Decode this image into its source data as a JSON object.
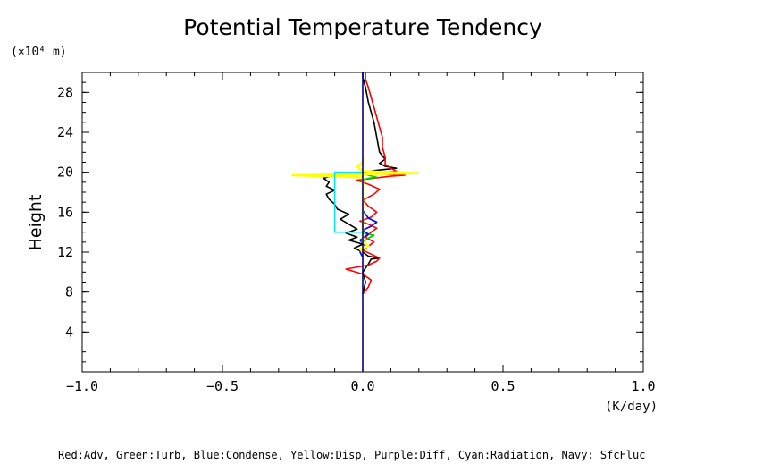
{
  "chart_data": {
    "type": "line",
    "title": "Potential Temperature Tendency",
    "xlabel": "(K/day)",
    "ylabel": "Height",
    "y_unit_label": "(×10⁴ m)",
    "xlim": [
      -1.0,
      1.0
    ],
    "ylim": [
      0,
      30
    ],
    "x_ticks": [
      -1.0,
      -0.5,
      0.0,
      0.5,
      1.0
    ],
    "x_tick_labels": [
      "−1.0",
      "−0.5",
      "0.0",
      "0.5",
      "1.0"
    ],
    "y_ticks": [
      4,
      8,
      12,
      16,
      20,
      24,
      28
    ],
    "y_tick_labels": [
      "4",
      "8",
      "12",
      "16",
      "20",
      "24",
      "28"
    ],
    "grid": false,
    "legend_text": "Red:Adv, Green:Turb, Blue:Condense, Yellow:Disp, Purple:Diff, Cyan:Radiation, Navy: SfcFluc",
    "series": [
      {
        "color": "#000000",
        "points": [
          [
            0.0,
            7.8
          ],
          [
            0.01,
            9.0
          ],
          [
            0.0,
            10.0
          ],
          [
            0.02,
            10.8
          ],
          [
            0.03,
            11.3
          ],
          [
            0.06,
            11.4
          ],
          [
            0.02,
            11.6
          ],
          [
            0.0,
            12.0
          ],
          [
            -0.03,
            12.4
          ],
          [
            0.0,
            12.8
          ],
          [
            -0.05,
            13.2
          ],
          [
            -0.02,
            13.5
          ],
          [
            -0.06,
            13.9
          ],
          [
            -0.02,
            14.3
          ],
          [
            -0.05,
            14.8
          ],
          [
            -0.08,
            15.3
          ],
          [
            -0.05,
            15.8
          ],
          [
            -0.09,
            16.3
          ],
          [
            -0.1,
            16.8
          ],
          [
            -0.12,
            17.3
          ],
          [
            -0.13,
            17.8
          ],
          [
            -0.1,
            18.2
          ],
          [
            -0.13,
            18.6
          ],
          [
            -0.12,
            19.0
          ],
          [
            -0.14,
            19.4
          ],
          [
            -0.1,
            19.7
          ],
          [
            -0.05,
            19.9
          ],
          [
            0.0,
            20.0
          ],
          [
            0.05,
            20.2
          ],
          [
            0.12,
            20.4
          ],
          [
            0.08,
            20.6
          ],
          [
            0.06,
            20.9
          ],
          [
            0.08,
            21.3
          ],
          [
            0.06,
            22.0
          ],
          [
            0.05,
            23.5
          ],
          [
            0.04,
            25.0
          ],
          [
            0.02,
            27.0
          ],
          [
            0.01,
            28.5
          ],
          [
            0.0,
            29.5
          ],
          [
            0.0,
            30.0
          ]
        ]
      },
      {
        "color": "#ff0000",
        "points": [
          [
            0.0,
            7.8
          ],
          [
            0.02,
            8.5
          ],
          [
            0.03,
            9.2
          ],
          [
            0.0,
            9.8
          ],
          [
            -0.06,
            10.3
          ],
          [
            0.02,
            10.7
          ],
          [
            0.05,
            11.1
          ],
          [
            0.06,
            11.4
          ],
          [
            0.03,
            11.8
          ],
          [
            0.0,
            12.2
          ],
          [
            0.02,
            12.6
          ],
          [
            0.04,
            13.0
          ],
          [
            0.01,
            13.5
          ],
          [
            0.03,
            14.0
          ],
          [
            0.05,
            14.4
          ],
          [
            0.02,
            14.8
          ],
          [
            -0.01,
            15.1
          ],
          [
            0.03,
            15.5
          ],
          [
            0.05,
            16.0
          ],
          [
            0.02,
            16.6
          ],
          [
            0.0,
            17.2
          ],
          [
            0.04,
            17.8
          ],
          [
            0.06,
            18.3
          ],
          [
            0.02,
            18.8
          ],
          [
            -0.02,
            19.2
          ],
          [
            0.1,
            19.6
          ],
          [
            0.15,
            19.7
          ],
          [
            0.02,
            19.9
          ],
          [
            0.12,
            20.1
          ],
          [
            0.1,
            20.4
          ],
          [
            0.08,
            20.8
          ],
          [
            0.08,
            21.5
          ],
          [
            0.07,
            22.5
          ],
          [
            0.07,
            23.5
          ],
          [
            0.06,
            24.5
          ],
          [
            0.05,
            25.5
          ],
          [
            0.04,
            26.5
          ],
          [
            0.03,
            27.5
          ],
          [
            0.02,
            28.5
          ],
          [
            0.01,
            29.3
          ],
          [
            0.01,
            30.0
          ]
        ]
      },
      {
        "color": "#00cc00",
        "points": [
          [
            0.0,
            13.0
          ],
          [
            0.02,
            13.4
          ],
          [
            0.04,
            13.7
          ],
          [
            0.0,
            13.9
          ],
          [
            0.0,
            19.2
          ],
          [
            0.02,
            19.4
          ],
          [
            0.05,
            19.5
          ],
          [
            0.02,
            19.7
          ],
          [
            0.0,
            19.9
          ]
        ]
      },
      {
        "color": "#0000ff",
        "points": [
          [
            0.0,
            11.5
          ],
          [
            -0.01,
            12.0
          ],
          [
            0.01,
            12.6
          ],
          [
            -0.01,
            13.2
          ],
          [
            0.02,
            13.8
          ],
          [
            0.0,
            14.2
          ],
          [
            0.03,
            14.6
          ],
          [
            0.05,
            15.0
          ],
          [
            0.02,
            15.4
          ],
          [
            0.01,
            15.8
          ],
          [
            0.0,
            16.2
          ]
        ]
      },
      {
        "color": "#ffff00",
        "points": [
          [
            0.0,
            12.0
          ],
          [
            -0.01,
            12.3
          ],
          [
            0.02,
            12.6
          ],
          [
            0.0,
            13.0
          ],
          [
            0.0,
            19.5
          ],
          [
            -0.25,
            19.7
          ],
          [
            0.0,
            19.8
          ],
          [
            0.2,
            19.9
          ],
          [
            0.0,
            20.1
          ],
          [
            -0.02,
            20.6
          ],
          [
            0.0,
            21.0
          ],
          [
            0.0,
            21.5
          ]
        ]
      },
      {
        "color": "#00e5ee",
        "points": [
          [
            0.0,
            14.0
          ],
          [
            -0.1,
            14.0
          ],
          [
            -0.1,
            20.0
          ],
          [
            0.0,
            20.0
          ]
        ]
      },
      {
        "color": "#000080",
        "points": [
          [
            0.0,
            0.0
          ],
          [
            0.0,
            30.0
          ]
        ]
      }
    ]
  }
}
